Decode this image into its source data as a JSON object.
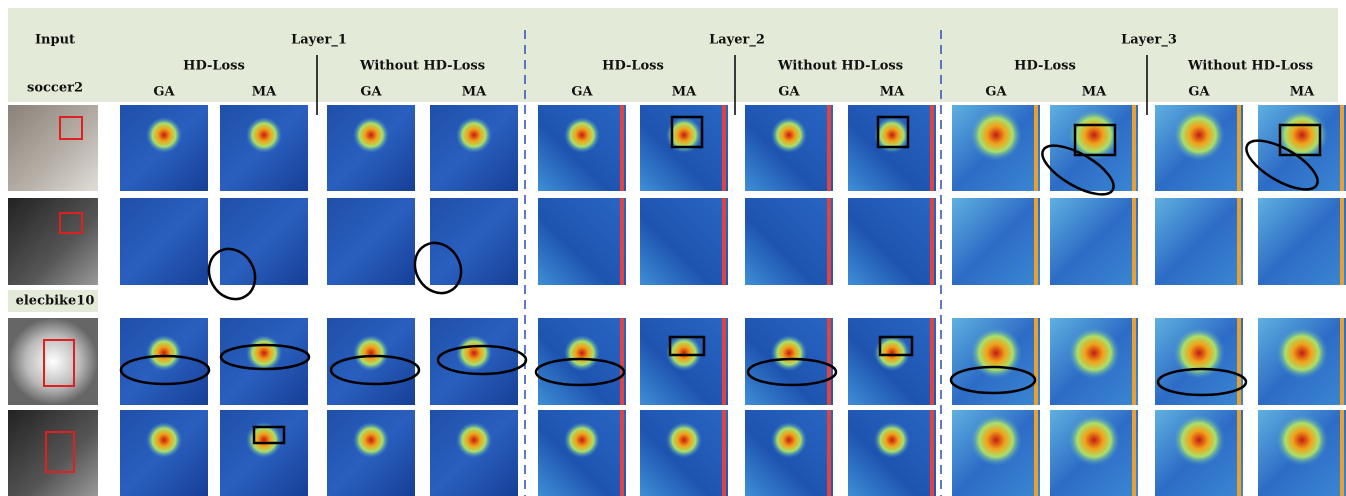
{
  "header": {
    "input": "Input",
    "layers": [
      {
        "title": "Layer_1",
        "groups": [
          {
            "title": "HD-Loss",
            "columns": [
              "GA",
              "MA"
            ]
          },
          {
            "title": "Without HD-Loss",
            "columns": [
              "GA",
              "MA"
            ]
          }
        ]
      },
      {
        "title": "Layer_2",
        "groups": [
          {
            "title": "HD-Loss",
            "columns": [
              "GA",
              "MA"
            ]
          },
          {
            "title": "Without HD-Loss",
            "columns": [
              "GA",
              "MA"
            ]
          }
        ]
      },
      {
        "title": "Layer_3",
        "groups": [
          {
            "title": "HD-Loss",
            "columns": [
              "GA",
              "MA"
            ]
          },
          {
            "title": "Without HD-Loss",
            "columns": [
              "GA",
              "MA"
            ]
          }
        ]
      }
    ]
  },
  "sequences": [
    "soccer2",
    "elecbike10"
  ]
}
